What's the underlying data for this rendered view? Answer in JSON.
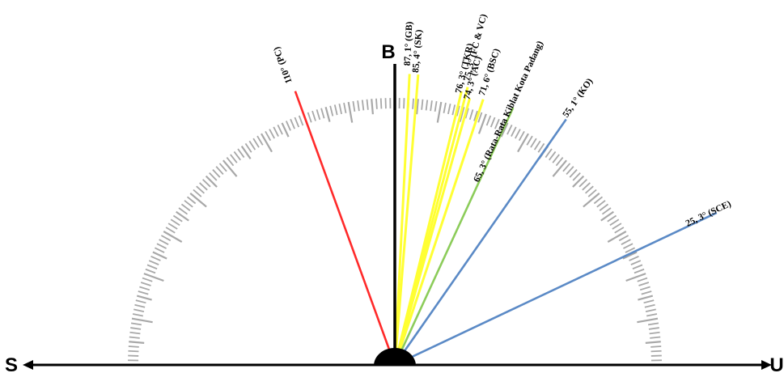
{
  "directions": {
    "west": "B",
    "south": "S",
    "north": "U"
  },
  "colors": {
    "axis": "#000000",
    "tick": "#a8a8a8",
    "pc": "#ff2a2a",
    "yellow": "#ffff33",
    "green": "#8ccc5a",
    "blue": "#5b8ac6"
  },
  "rays": [
    {
      "id": "gb",
      "angle": 87.1,
      "label": "87, 1° (GB)",
      "color": "yellow"
    },
    {
      "id": "sk",
      "angle": 85.4,
      "label": "85, 4° (SK)",
      "color": "yellow"
    },
    {
      "id": "tkr",
      "angle": 76.3,
      "label": "76, 3° (TKR)",
      "color": "yellow"
    },
    {
      "id": "fcvc",
      "angle": 75.3,
      "label": "75, 3° (FC & VC)",
      "color": "yellow"
    },
    {
      "id": "ac",
      "angle": 74.3,
      "label": "74, 3° (AC)",
      "color": "yellow"
    },
    {
      "id": "bsc",
      "angle": 71.6,
      "label": "71, 6° (BSC)",
      "color": "yellow"
    },
    {
      "id": "avg",
      "angle": 65.3,
      "label": "65, 3° (Rata-Rata Kiblat Kota Padang)",
      "color": "green"
    },
    {
      "id": "ko",
      "angle": 55.1,
      "label": "55, 1° (KO)",
      "color": "blue"
    },
    {
      "id": "sce",
      "angle": 25.3,
      "label": "25, 3° (SCE)",
      "color": "blue"
    },
    {
      "id": "pc",
      "angle": 110,
      "label": "110° (PC)",
      "color": "pc"
    }
  ]
}
